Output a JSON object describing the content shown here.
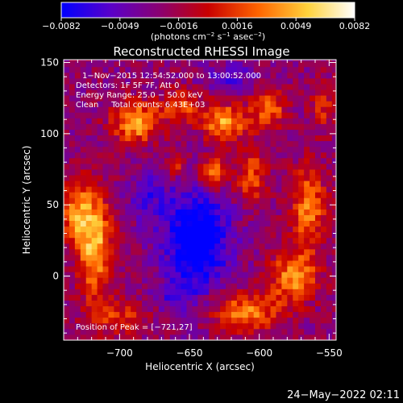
{
  "chart_data": {
    "type": "heatmap",
    "title": "Reconstructed RHESSI Image",
    "xlabel": "Heliocentric X (arcsec)",
    "ylabel": "Heliocentric Y (arcsec)",
    "xlim": [
      -740,
      -545
    ],
    "ylim": [
      -45,
      152
    ],
    "x_ticks": [
      -700,
      -650,
      -600,
      -550
    ],
    "x_tick_labels": [
      "−700",
      "−650",
      "−600",
      "−550"
    ],
    "y_ticks": [
      0,
      50,
      100,
      150
    ],
    "y_tick_labels": [
      "0",
      "50",
      "100",
      "150"
    ],
    "colorbar": {
      "range": [
        -0.0082,
        0.0082
      ],
      "tick_labels": [
        "−0.0082",
        "−0.0049",
        "−0.0016",
        "0.0016",
        "0.0049",
        "0.0082"
      ],
      "unit_parts": [
        "(photons cm",
        "−2",
        " s",
        "−1",
        " asec",
        "−2",
        ")"
      ],
      "colors": [
        "#0000ff",
        "#5a00c8",
        "#8c006e",
        "#c80000",
        "#ff6400",
        "#ffd23c",
        "#ffffff"
      ]
    },
    "annotations": [
      "1−Nov−2015 12:54:52.000 to 13:00:52.000",
      "Detectors: 1F 5F 7F, Att 0",
      "Energy Range: 25.0 − 50.0 keV",
      "Clean     Total counts: 6.43E+03"
    ],
    "peak_label": "Position of Peak = [−721,27]",
    "sources": [
      {
        "x": -718,
        "y": 22,
        "sx": 9,
        "sy": 26,
        "amp": 0.0078
      },
      {
        "x": -732,
        "y": 45,
        "sx": 8,
        "sy": 14,
        "amp": 0.0055
      },
      {
        "x": -688,
        "y": 108,
        "sx": 12,
        "sy": 10,
        "amp": 0.0072
      },
      {
        "x": -655,
        "y": 120,
        "sx": 10,
        "sy": 8,
        "amp": 0.005
      },
      {
        "x": -625,
        "y": 108,
        "sx": 11,
        "sy": 9,
        "amp": 0.007
      },
      {
        "x": -593,
        "y": 118,
        "sx": 9,
        "sy": 10,
        "amp": 0.0052
      },
      {
        "x": -633,
        "y": 72,
        "sx": 7,
        "sy": 8,
        "amp": 0.007
      },
      {
        "x": -660,
        "y": 78,
        "sx": 5,
        "sy": 6,
        "amp": 0.004
      },
      {
        "x": -605,
        "y": 70,
        "sx": 8,
        "sy": 14,
        "amp": 0.0048
      },
      {
        "x": -565,
        "y": 48,
        "sx": 9,
        "sy": 20,
        "amp": 0.006
      },
      {
        "x": -575,
        "y": 0,
        "sx": 12,
        "sy": 12,
        "amp": 0.0065
      },
      {
        "x": -610,
        "y": -25,
        "sx": 18,
        "sy": 10,
        "amp": 0.006
      },
      {
        "x": -700,
        "y": -30,
        "sx": 14,
        "sy": 8,
        "amp": 0.004
      },
      {
        "x": -555,
        "y": 120,
        "sx": 6,
        "sy": 12,
        "amp": 0.0035
      }
    ],
    "holes": [
      {
        "x": -645,
        "y": 25,
        "sx": 16,
        "sy": 26,
        "amp": 0.0075
      },
      {
        "x": -680,
        "y": 55,
        "sx": 10,
        "sy": 12,
        "amp": 0.003
      },
      {
        "x": -620,
        "y": 140,
        "sx": 14,
        "sy": 7,
        "amp": 0.003
      },
      {
        "x": -660,
        "y": -15,
        "sx": 8,
        "sy": 6,
        "amp": 0.0025
      }
    ],
    "background": -0.0028
  },
  "footer": {
    "timestamp": "24−May−2022 02:11"
  }
}
